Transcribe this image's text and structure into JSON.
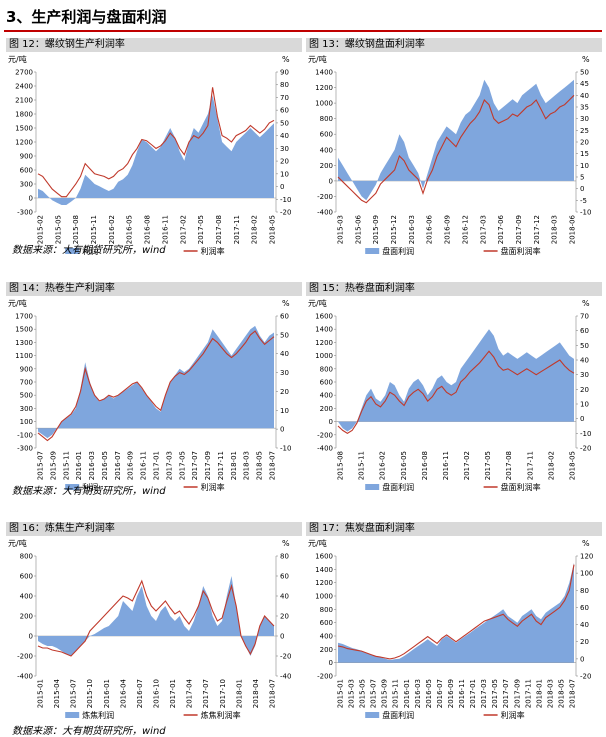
{
  "section_title": "3、生产利润与盘面利润",
  "colors": {
    "bar": "#7fa6dd",
    "line": "#c0392b",
    "title_bg": "#d9d9d9",
    "rule": "#c00000"
  },
  "source_note": "数据来源：大有期货研究所，wind",
  "charts": [
    {
      "id": "fig12",
      "fig_title": "图 12：螺纹钢生产利润率",
      "type": "bar+line",
      "y_unit": "元/吨",
      "y2_unit": "%",
      "y_ticks": [
        "2700",
        "2400",
        "2100",
        "1800",
        "1500",
        "1200",
        "900",
        "600",
        "300",
        "0",
        "-300"
      ],
      "y2_ticks": [
        "90",
        "80",
        "70",
        "60",
        "50",
        "40",
        "30",
        "20",
        "10",
        "0",
        "-10",
        "-20"
      ],
      "ylim": [
        -300,
        2700
      ],
      "y2lim": [
        -20,
        90
      ],
      "x_labels": [
        "2015-02",
        "2015-05",
        "2015-08",
        "2015-11",
        "2016-02",
        "2016-05",
        "2016-08",
        "2016-11",
        "2017-02",
        "2017-05",
        "2017-08",
        "2017-11",
        "2018-02",
        "2018-05"
      ],
      "legend": [
        "利润",
        "利润率"
      ],
      "series": [
        {
          "name": "利润",
          "type": "area",
          "values": [
            200,
            150,
            50,
            -50,
            -100,
            -150,
            -150,
            -80,
            0,
            200,
            500,
            400,
            300,
            250,
            200,
            150,
            200,
            350,
            400,
            500,
            700,
            1000,
            1250,
            1200,
            1100,
            1000,
            1100,
            1300,
            1500,
            1300,
            1000,
            800,
            1200,
            1500,
            1400,
            1600,
            1800,
            2200,
            1700,
            1200,
            1100,
            1000,
            1200,
            1300,
            1400,
            1500,
            1400,
            1300,
            1400,
            1500,
            1600
          ]
        },
        {
          "name": "利润率",
          "type": "line",
          "values": [
            10,
            8,
            3,
            -2,
            -5,
            -8,
            -8,
            -3,
            2,
            8,
            18,
            14,
            10,
            9,
            8,
            6,
            8,
            12,
            14,
            18,
            25,
            30,
            37,
            36,
            33,
            30,
            32,
            36,
            42,
            38,
            30,
            25,
            35,
            40,
            38,
            42,
            48,
            78,
            55,
            40,
            38,
            35,
            40,
            42,
            44,
            48,
            45,
            42,
            45,
            50,
            52
          ]
        }
      ]
    },
    {
      "id": "fig13",
      "fig_title": "图 13：螺纹钢盘面利润率",
      "type": "bar+line",
      "y_unit": "元/吨",
      "y2_unit": "%",
      "y_ticks": [
        "1400",
        "1200",
        "1000",
        "800",
        "600",
        "400",
        "200",
        "0",
        "-200",
        "-400"
      ],
      "y2_ticks": [
        "50",
        "45",
        "40",
        "35",
        "30",
        "25",
        "20",
        "15",
        "10",
        "5",
        "0",
        "-5",
        "-10"
      ],
      "ylim": [
        -400,
        1400
      ],
      "y2lim": [
        -10,
        50
      ],
      "x_labels": [
        "2015-03",
        "2015-06",
        "2015-09",
        "2015-12",
        "2016-03",
        "2016-06",
        "2016-09",
        "2016-12",
        "2017-03",
        "2017-06",
        "2017-09",
        "2017-12",
        "2018-03",
        "2018-06"
      ],
      "legend": [
        "盘面利润",
        "盘面利润率"
      ],
      "series": [
        {
          "name": "盘面利润",
          "type": "area",
          "values": [
            300,
            200,
            100,
            0,
            -100,
            -200,
            -250,
            -150,
            -50,
            100,
            200,
            300,
            400,
            600,
            500,
            300,
            200,
            100,
            -100,
            100,
            300,
            500,
            600,
            700,
            650,
            600,
            750,
            850,
            900,
            1000,
            1100,
            1300,
            1200,
            1000,
            900,
            950,
            1000,
            1050,
            1000,
            1100,
            1150,
            1200,
            1250,
            1100,
            1000,
            1050,
            1100,
            1150,
            1200,
            1250,
            1300
          ]
        },
        {
          "name": "盘面利润率",
          "type": "line",
          "values": [
            5,
            3,
            1,
            -1,
            -3,
            -5,
            -6,
            -4,
            -2,
            2,
            4,
            6,
            8,
            14,
            12,
            8,
            6,
            4,
            -2,
            4,
            8,
            14,
            18,
            22,
            20,
            18,
            22,
            25,
            28,
            30,
            33,
            38,
            36,
            30,
            28,
            29,
            30,
            32,
            31,
            33,
            35,
            36,
            38,
            34,
            30,
            32,
            33,
            35,
            36,
            38,
            40
          ]
        }
      ]
    },
    {
      "id": "fig14",
      "fig_title": "图 14：热卷生产利润率",
      "type": "bar+line",
      "y_unit": "元/吨",
      "y2_unit": "%",
      "y_ticks": [
        "1700",
        "1500",
        "1300",
        "1100",
        "900",
        "700",
        "500",
        "300",
        "100",
        "-100",
        "-300"
      ],
      "y2_ticks": [
        "60",
        "50",
        "40",
        "30",
        "20",
        "10",
        "0",
        "-10"
      ],
      "ylim": [
        -300,
        1700
      ],
      "y2lim": [
        -10,
        60
      ],
      "x_labels": [
        "2015-07",
        "2015-09",
        "2015-11",
        "2016-01",
        "2016-03",
        "2016-05",
        "2016-07",
        "2016-09",
        "2016-11",
        "2017-01",
        "2017-03",
        "2017-05",
        "2017-07",
        "2017-09",
        "2017-11",
        "2018-01",
        "2018-03",
        "2018-05",
        "2018-07"
      ],
      "legend": [
        "利润",
        "利润率"
      ],
      "series": [
        {
          "name": "利润",
          "type": "area",
          "values": [
            -50,
            -100,
            -150,
            -100,
            0,
            100,
            150,
            200,
            300,
            600,
            1000,
            700,
            500,
            400,
            450,
            500,
            450,
            500,
            550,
            600,
            650,
            700,
            600,
            500,
            400,
            300,
            250,
            500,
            700,
            800,
            900,
            850,
            900,
            1000,
            1100,
            1200,
            1300,
            1500,
            1400,
            1300,
            1200,
            1100,
            1200,
            1300,
            1400,
            1500,
            1550,
            1400,
            1300,
            1400,
            1450
          ]
        },
        {
          "name": "利润率",
          "type": "line",
          "values": [
            -2,
            -4,
            -6,
            -4,
            0,
            4,
            6,
            8,
            12,
            20,
            32,
            24,
            18,
            15,
            16,
            18,
            17,
            18,
            20,
            22,
            24,
            25,
            22,
            18,
            15,
            12,
            10,
            18,
            25,
            28,
            30,
            29,
            31,
            34,
            37,
            40,
            44,
            48,
            46,
            43,
            40,
            38,
            40,
            43,
            46,
            50,
            52,
            48,
            45,
            47,
            49
          ]
        }
      ]
    },
    {
      "id": "fig15",
      "fig_title": "图 15：热卷盘面利润率",
      "type": "bar+line",
      "y_unit": "元/吨",
      "y2_unit": "%",
      "y_ticks": [
        "1600",
        "1400",
        "1200",
        "1000",
        "800",
        "600",
        "400",
        "200",
        "0",
        "-200",
        "-400"
      ],
      "y2_ticks": [
        "70",
        "60",
        "50",
        "40",
        "30",
        "20",
        "10",
        "0",
        "-10",
        "-20"
      ],
      "ylim": [
        -400,
        1600
      ],
      "y2lim": [
        -20,
        70
      ],
      "x_labels": [
        "2015-08",
        "2015-11",
        "2016-02",
        "2016-05",
        "2016-08",
        "2016-11",
        "2017-02",
        "2017-05",
        "2017-08",
        "2017-11",
        "2018-02",
        "2018-05"
      ],
      "legend": [
        "盘面利润",
        "盘面利润率"
      ],
      "series": [
        {
          "name": "盘面利润",
          "type": "area",
          "values": [
            0,
            -100,
            -150,
            -100,
            0,
            200,
            400,
            500,
            350,
            300,
            400,
            600,
            550,
            400,
            300,
            500,
            600,
            650,
            550,
            400,
            500,
            650,
            700,
            600,
            550,
            600,
            800,
            900,
            1000,
            1100,
            1200,
            1300,
            1400,
            1300,
            1100,
            1000,
            1050,
            1000,
            950,
            1000,
            1050,
            1000,
            950,
            1000,
            1050,
            1100,
            1150,
            1200,
            1100,
            1000,
            950
          ]
        },
        {
          "name": "盘面利润率",
          "type": "line",
          "values": [
            -5,
            -8,
            -10,
            -8,
            -3,
            5,
            12,
            15,
            10,
            8,
            12,
            18,
            16,
            12,
            9,
            15,
            18,
            20,
            17,
            12,
            15,
            20,
            22,
            18,
            16,
            18,
            25,
            28,
            32,
            35,
            38,
            42,
            46,
            42,
            36,
            33,
            34,
            32,
            30,
            32,
            34,
            32,
            30,
            32,
            34,
            36,
            38,
            40,
            36,
            33,
            31
          ]
        }
      ]
    },
    {
      "id": "fig16",
      "fig_title": "图 16：炼焦生产利润率",
      "type": "bar+line",
      "y_unit": "元/吨",
      "y2_unit": "%",
      "y_ticks": [
        "800",
        "600",
        "400",
        "200",
        "0",
        "-200",
        "-400"
      ],
      "y2_ticks": [
        "80",
        "60",
        "40",
        "20",
        "0",
        "-20",
        "-40"
      ],
      "ylim": [
        -400,
        800
      ],
      "y2lim": [
        -40,
        80
      ],
      "x_labels": [
        "2015-01",
        "2015-04",
        "2015-07",
        "2015-10",
        "2016-01",
        "2016-04",
        "2016-07",
        "2016-10",
        "2017-01",
        "2017-04",
        "2017-07",
        "2017-10",
        "2018-01",
        "2018-04",
        "2018-07"
      ],
      "legend": [
        "炼焦利润",
        "炼焦利润率"
      ],
      "series": [
        {
          "name": "炼焦利润",
          "type": "area",
          "values": [
            -50,
            -80,
            -100,
            -100,
            -120,
            -150,
            -180,
            -200,
            -150,
            -100,
            -50,
            0,
            20,
            50,
            80,
            100,
            150,
            200,
            350,
            300,
            250,
            400,
            500,
            300,
            200,
            150,
            250,
            300,
            200,
            150,
            200,
            100,
            50,
            150,
            300,
            500,
            400,
            200,
            100,
            150,
            400,
            600,
            300,
            0,
            -100,
            -200,
            -100,
            100,
            200,
            150,
            100
          ]
        },
        {
          "name": "炼焦利润率",
          "type": "line",
          "values": [
            -10,
            -12,
            -12,
            -14,
            -15,
            -16,
            -18,
            -20,
            -15,
            -10,
            -5,
            5,
            10,
            15,
            20,
            25,
            30,
            35,
            40,
            38,
            35,
            45,
            55,
            40,
            30,
            25,
            30,
            35,
            28,
            22,
            25,
            18,
            12,
            20,
            30,
            45,
            38,
            25,
            15,
            18,
            35,
            50,
            30,
            0,
            -10,
            -18,
            -8,
            10,
            20,
            15,
            10
          ]
        }
      ]
    },
    {
      "id": "fig17",
      "fig_title": "图 17：焦炭盘面利润率",
      "type": "bar+line",
      "y_unit": "元/吨",
      "y2_unit": "%",
      "y_ticks": [
        "1600",
        "1400",
        "1200",
        "1000",
        "800",
        "600",
        "400",
        "200",
        "0",
        "-200"
      ],
      "y2_ticks": [
        "120",
        "100",
        "80",
        "60",
        "40",
        "20",
        "0",
        "-20"
      ],
      "ylim": [
        -200,
        1600
      ],
      "y2lim": [
        -20,
        120
      ],
      "x_labels": [
        "2015-01",
        "2015-03",
        "2015-05",
        "2015-07",
        "2015-09",
        "2015-11",
        "2016-01",
        "2016-03",
        "2016-05",
        "2016-07",
        "2016-09",
        "2016-11",
        "2017-01",
        "2017-03",
        "2017-05",
        "2017-07",
        "2017-09",
        "2017-11",
        "2018-01",
        "2018-03",
        "2018-05",
        "2018-07"
      ],
      "legend": [
        "盘面利润",
        "利润率"
      ],
      "series": [
        {
          "name": "盘面利润",
          "type": "area",
          "values": [
            300,
            280,
            250,
            220,
            200,
            180,
            150,
            120,
            100,
            80,
            60,
            40,
            50,
            60,
            100,
            150,
            200,
            250,
            300,
            350,
            300,
            250,
            350,
            400,
            350,
            300,
            350,
            400,
            450,
            500,
            550,
            600,
            650,
            700,
            750,
            800,
            700,
            650,
            600,
            700,
            750,
            800,
            700,
            650,
            750,
            800,
            850,
            900,
            1000,
            1200,
            1500
          ]
        },
        {
          "name": "利润率",
          "type": "line",
          "values": [
            15,
            14,
            12,
            11,
            10,
            9,
            7,
            5,
            3,
            2,
            1,
            0,
            1,
            3,
            6,
            10,
            14,
            18,
            22,
            26,
            22,
            18,
            24,
            28,
            24,
            20,
            24,
            28,
            32,
            36,
            40,
            44,
            46,
            48,
            50,
            52,
            46,
            42,
            38,
            44,
            48,
            52,
            44,
            40,
            48,
            52,
            56,
            60,
            68,
            80,
            110
          ]
        }
      ]
    }
  ]
}
